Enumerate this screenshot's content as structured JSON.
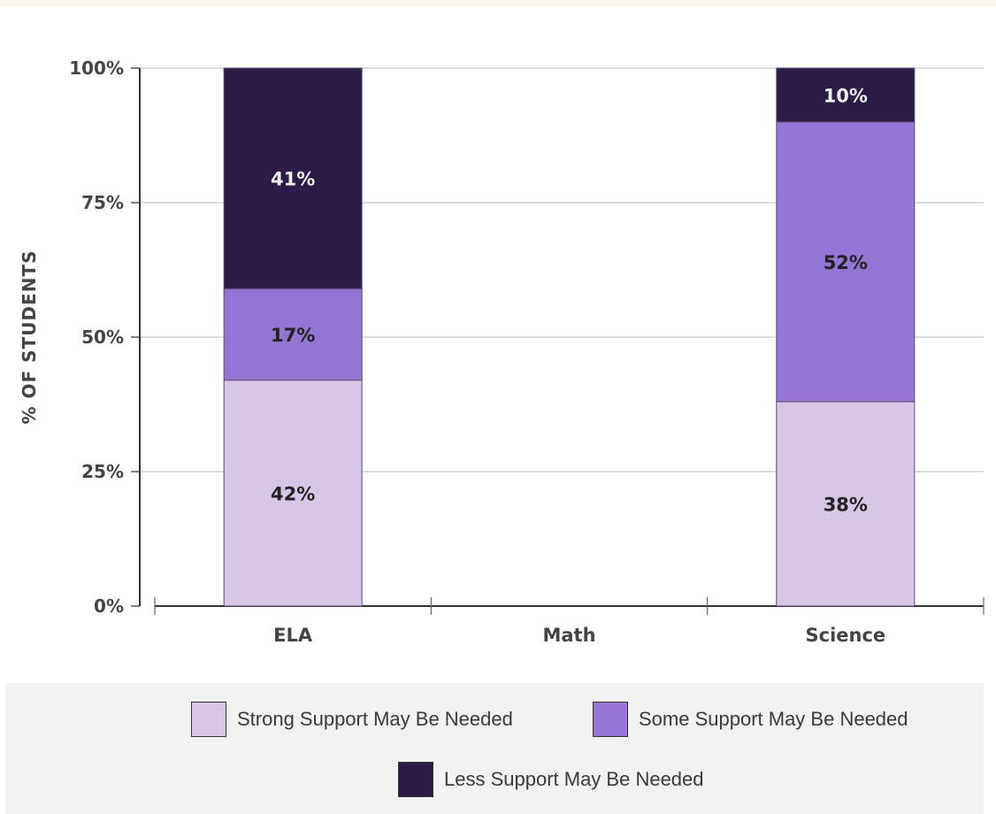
{
  "chart_data": {
    "type": "bar",
    "stacked": true,
    "categories": [
      "ELA",
      "Math",
      "Science"
    ],
    "series": [
      {
        "name": "Strong Support May Be Needed",
        "color": "#d7c6e6",
        "values": [
          42,
          null,
          38
        ],
        "labels": [
          "42%",
          "",
          "38%"
        ],
        "label_color": "#222222"
      },
      {
        "name": "Some Support May Be Needed",
        "color": "#9475d4",
        "values": [
          17,
          null,
          52
        ],
        "labels": [
          "17%",
          "",
          "52%"
        ],
        "label_color": "#222222"
      },
      {
        "name": "Less Support May Be Needed",
        "color": "#2c1a47",
        "values": [
          41,
          null,
          10
        ],
        "labels": [
          "41%",
          "",
          "10%"
        ],
        "label_color": "#f0f0f0"
      }
    ],
    "ylabel": "% OF STUDENTS",
    "xlabel": "",
    "ylim": [
      0,
      100
    ],
    "yticks": [
      0,
      25,
      50,
      75,
      100
    ],
    "ytick_labels": [
      "0%",
      "25%",
      "50%",
      "75%",
      "100%"
    ],
    "grid": true,
    "legend_position": "bottom"
  }
}
